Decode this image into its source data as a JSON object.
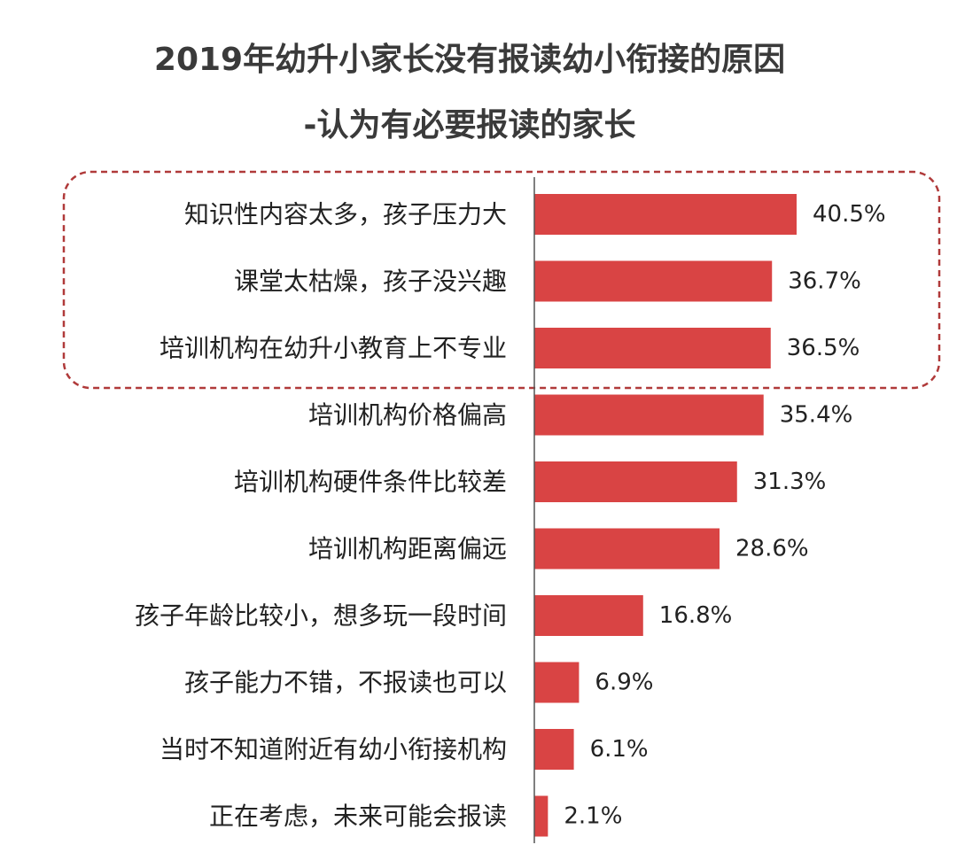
{
  "chart_data": {
    "type": "bar",
    "orientation": "horizontal",
    "title": "2019年幼升小家长没有报读幼小衔接的原因",
    "subtitle": "-认为有必要报读的家长",
    "categories": [
      "知识性内容太多，孩子压力大",
      "课堂太枯燥，孩子没兴趣",
      "培训机构在幼升小教育上不专业",
      "培训机构价格偏高",
      "培训机构硬件条件比较差",
      "培训机构距离偏远",
      "孩子年龄比较小，想多玩一段时间",
      "孩子能力不错，不报读也可以",
      "当时不知道附近有幼小衔接机构",
      "正在考虑，未来可能会报读"
    ],
    "values": [
      40.5,
      36.7,
      36.5,
      35.4,
      31.3,
      28.6,
      16.8,
      6.9,
      6.1,
      2.1
    ],
    "value_labels": [
      "40.5%",
      "36.7%",
      "36.5%",
      "35.4%",
      "31.3%",
      "28.6%",
      "16.8%",
      "6.9%",
      "6.1%",
      "2.1%"
    ],
    "xlim": [
      0,
      45
    ],
    "highlighted_top_n": 3,
    "legend": "none",
    "grid": false,
    "colors": {
      "bar": "#d94444",
      "highlight_border": "#b03a3a",
      "axis": "#555555",
      "text": "#222222"
    }
  }
}
